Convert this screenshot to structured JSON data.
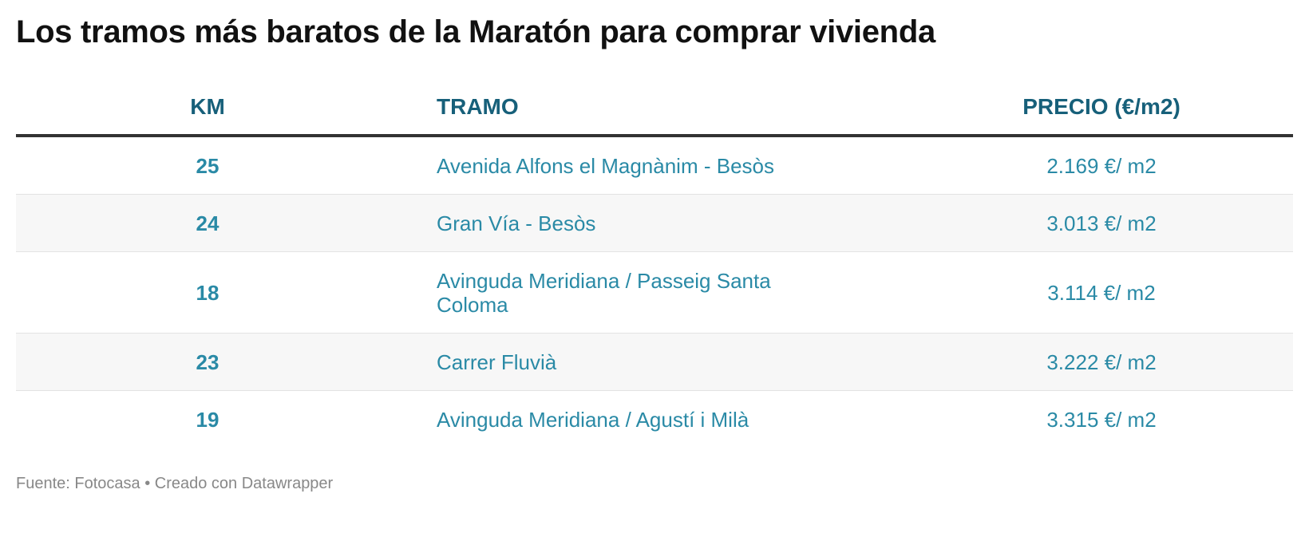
{
  "header": {
    "title": "Los tramos más baratos de la Maratón para comprar vivienda"
  },
  "table": {
    "columns": [
      "KM",
      "TRAMO",
      "PRECIO (€/m2)"
    ],
    "rows": [
      [
        "25",
        "Avenida Alfons el Magnànim - Besòs",
        "2.169 €/ m2"
      ],
      [
        "24",
        "Gran Vía - Besòs",
        "3.013 €/ m2"
      ],
      [
        "18",
        "Avinguda Meridiana / Passeig Santa Coloma",
        "3.114 €/ m2"
      ],
      [
        "23",
        "Carrer Fluvià",
        "3.222 €/ m2"
      ],
      [
        "19",
        "Avinguda Meridiana / Agustí i Milà",
        "3.315 €/ m2"
      ]
    ]
  },
  "footer": {
    "source": "Fuente: Fotocasa • Creado con Datawrapper"
  }
}
